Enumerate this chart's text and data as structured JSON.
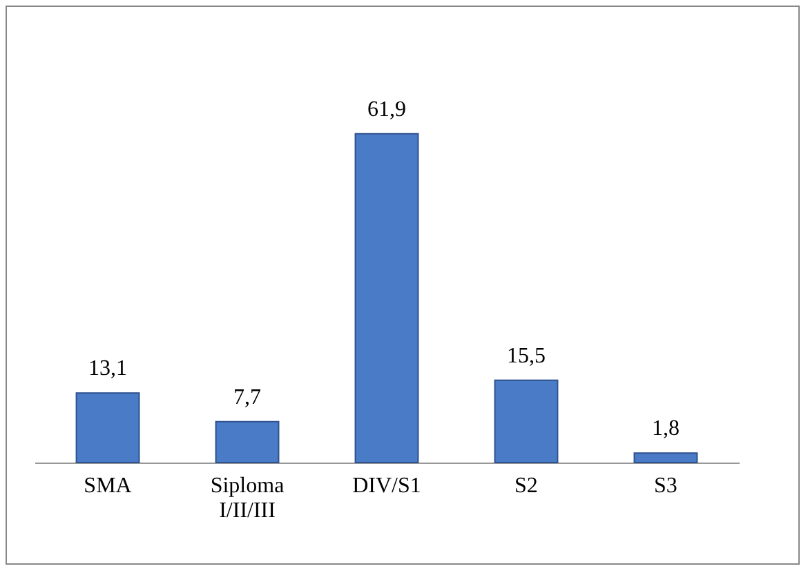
{
  "chart_data": {
    "type": "bar",
    "categories": [
      "SMA",
      "Siploma I/II/III",
      "DIV/S1",
      "S2",
      "S3"
    ],
    "values": [
      13.1,
      7.7,
      61.9,
      15.5,
      1.8
    ],
    "value_labels": [
      "13,1",
      "7,7",
      "61,9",
      "15,5",
      "1,8"
    ],
    "color": "#4a7bc6"
  }
}
